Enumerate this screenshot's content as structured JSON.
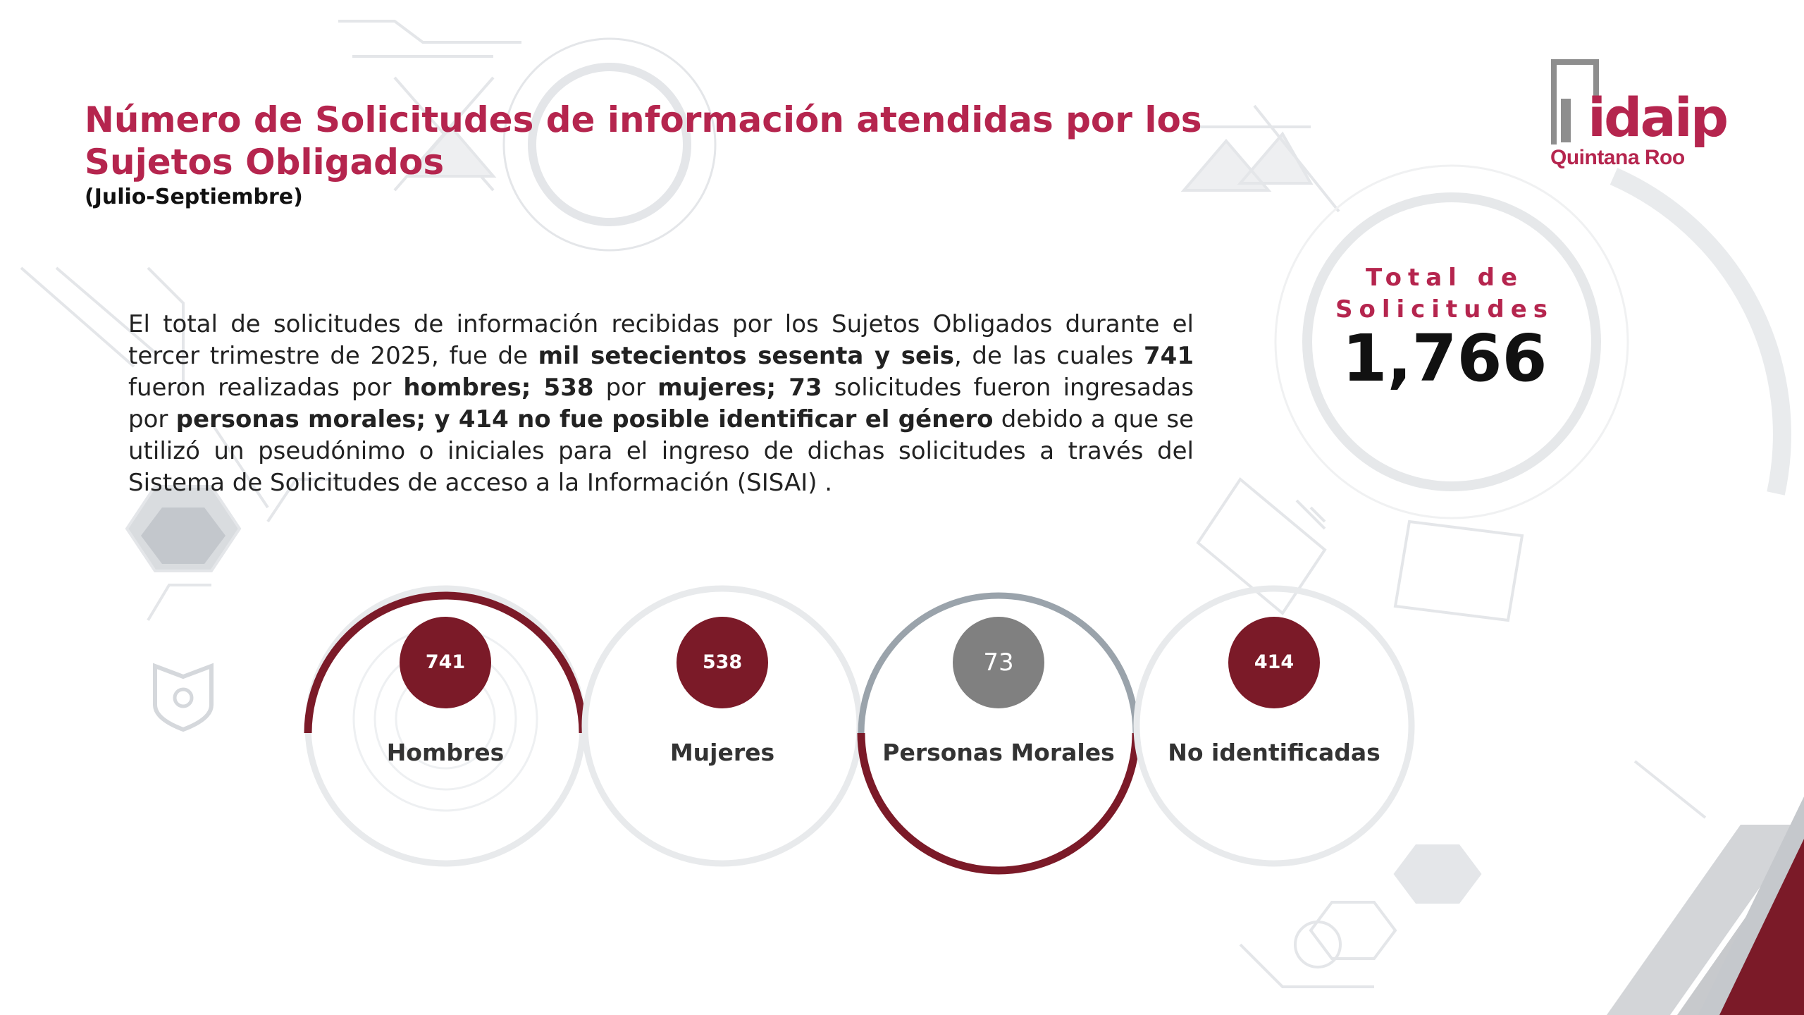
{
  "header": {
    "title": "Número de Solicitudes de información atendidas por los Sujetos Obligados",
    "period": "(Julio-Septiembre)"
  },
  "logo": {
    "word": "idaip",
    "subtitle": "Quintana Roo"
  },
  "summary": {
    "part1": "El total de solicitudes de información recibidas por los Sujetos Obligados durante el tercer trimestre de 2025, fue de ",
    "bold1": "mil setecientos sesenta y seis",
    "part2": ", de las cuales ",
    "bold2": "741",
    "part3": " fueron realizadas por ",
    "bold3": "hombres; 538",
    "part4": " por ",
    "bold4": "mujeres; 73",
    "part5": " solicitudes fueron ingresadas por ",
    "bold5": "personas morales; y 414 no fue posible identificar el género",
    "part6": " debido a que se utilizó un pseudónimo o iniciales para el ingreso de dichas solicitudes a través del Sistema de Solicitudes de acceso a la Información (SISAI) ."
  },
  "total": {
    "label": "Total de Solicitudes",
    "value": "1,766"
  },
  "categories": [
    {
      "value": "741",
      "label": "Hombres"
    },
    {
      "value": "538",
      "label": "Mujeres"
    },
    {
      "value": "73",
      "label": "Personas Morales"
    },
    {
      "value": "414",
      "label": "No identificadas"
    }
  ],
  "colors": {
    "accent": "#b5254e",
    "badge": "#7b1a28",
    "badge_grey": "#808080",
    "ring_grey": "#9aa3ab"
  }
}
